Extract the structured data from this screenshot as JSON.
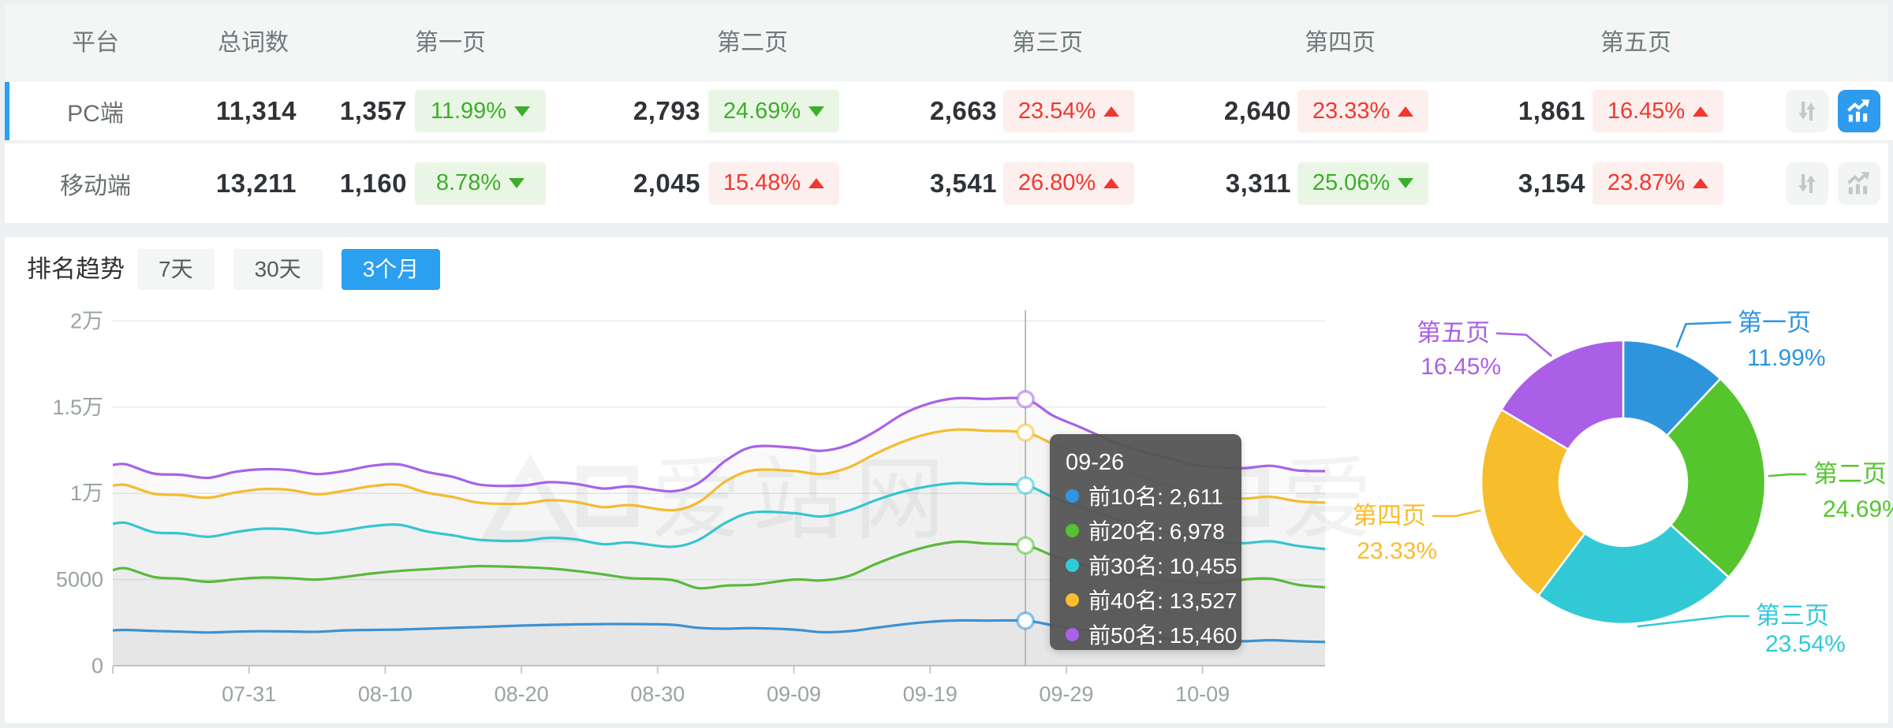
{
  "table": {
    "columns": [
      "平台",
      "总词数",
      "第一页",
      "第二页",
      "第三页",
      "第四页",
      "第五页"
    ],
    "rows": [
      {
        "platform": "PC端",
        "total": "11,314",
        "selected": true,
        "pages": [
          {
            "count": "1,357",
            "pct": "11.99%",
            "dir": "down"
          },
          {
            "count": "2,793",
            "pct": "24.69%",
            "dir": "down"
          },
          {
            "count": "2,663",
            "pct": "23.54%",
            "dir": "up"
          },
          {
            "count": "2,640",
            "pct": "23.33%",
            "dir": "up"
          },
          {
            "count": "1,861",
            "pct": "16.45%",
            "dir": "up"
          }
        ]
      },
      {
        "platform": "移动端",
        "total": "13,211",
        "selected": false,
        "pages": [
          {
            "count": "1,160",
            "pct": "8.78%",
            "dir": "down"
          },
          {
            "count": "2,045",
            "pct": "15.48%",
            "dir": "up"
          },
          {
            "count": "3,541",
            "pct": "26.80%",
            "dir": "up"
          },
          {
            "count": "3,311",
            "pct": "25.06%",
            "dir": "down"
          },
          {
            "count": "3,154",
            "pct": "23.87%",
            "dir": "up"
          }
        ]
      }
    ]
  },
  "trend": {
    "title": "排名趋势",
    "tabs": [
      {
        "label": "7天",
        "active": false
      },
      {
        "label": "30天",
        "active": false
      },
      {
        "label": "3个月",
        "active": true
      }
    ]
  },
  "tooltip": {
    "date": "09-26",
    "items": [
      {
        "label": "前10名",
        "value": "2,611",
        "color": "#3095e2"
      },
      {
        "label": "前20名",
        "value": "6,978",
        "color": "#54c234"
      },
      {
        "label": "前30名",
        "value": "10,455",
        "color": "#30cbd8"
      },
      {
        "label": "前40名",
        "value": "13,527",
        "color": "#f8bf2b"
      },
      {
        "label": "前50名",
        "value": "15,460",
        "color": "#a862e8"
      }
    ]
  },
  "colors": {
    "accent_blue": "#2aa1f1",
    "badge_green_text": "#3dae2b",
    "badge_green_bg": "#e9f6e5",
    "badge_red_text": "#f0382e",
    "badge_red_bg": "#fdefee",
    "active_icon_bg": "#2e9bef",
    "header_bg": "#f4f6f6",
    "grid_line": "#e7e9e9",
    "axis_line": "#c8cbcb",
    "axis_text": "#9aa3a3"
  },
  "watermark_text": "爱站网",
  "chart_data": [
    {
      "type": "line",
      "title": "排名趋势 (3个月)",
      "x_start_date": "07-21",
      "x_tick_labels": [
        "07-31",
        "08-10",
        "08-20",
        "08-30",
        "09-09",
        "09-19",
        "09-29",
        "10-09"
      ],
      "x_tick_offsets": [
        10,
        20,
        30,
        40,
        50,
        60,
        70,
        80
      ],
      "y_tick_labels": [
        "0",
        "5000",
        "1万",
        "1.5万",
        "2万"
      ],
      "y_tick_values": [
        0,
        5000,
        10000,
        15000,
        20000
      ],
      "ylim": [
        0,
        20000
      ],
      "grid": true,
      "legend_position": "none",
      "crosshair": {
        "date": "09-26",
        "x_offset": 67
      },
      "x_offsets": [
        0,
        1,
        3,
        5,
        7,
        9,
        11,
        13,
        15,
        17,
        19,
        21,
        23,
        25,
        27,
        30,
        32,
        34,
        36,
        38,
        41,
        43,
        45,
        47,
        50,
        52,
        54,
        56,
        58,
        60,
        62,
        64,
        67,
        69,
        71,
        73,
        75,
        77,
        79,
        81,
        83,
        85,
        87,
        89
      ],
      "series": [
        {
          "name": "前10名",
          "color": "#3095e2",
          "values": [
            2050,
            2080,
            2020,
            1980,
            1930,
            1980,
            2000,
            1990,
            1970,
            2050,
            2080,
            2100,
            2150,
            2200,
            2250,
            2330,
            2370,
            2400,
            2420,
            2420,
            2380,
            2200,
            2150,
            2180,
            2100,
            1950,
            2000,
            2200,
            2400,
            2550,
            2630,
            2620,
            2611,
            2350,
            2100,
            1900,
            1750,
            1600,
            1500,
            1450,
            1420,
            1480,
            1420,
            1380
          ]
        },
        {
          "name": "前20名",
          "color": "#54c234",
          "values": [
            5550,
            5650,
            5150,
            5050,
            4870,
            5020,
            5120,
            5080,
            5000,
            5150,
            5350,
            5500,
            5600,
            5700,
            5780,
            5720,
            5650,
            5500,
            5300,
            5080,
            4980,
            4500,
            4650,
            4700,
            5000,
            4950,
            5200,
            5900,
            6500,
            6950,
            7200,
            7100,
            6978,
            6400,
            5900,
            5500,
            5200,
            5000,
            4850,
            4800,
            5000,
            5050,
            4700,
            4550
          ]
        },
        {
          "name": "前30名",
          "color": "#30cbd8",
          "values": [
            8230,
            8280,
            7750,
            7680,
            7480,
            7750,
            7950,
            7900,
            7680,
            7850,
            8100,
            8180,
            7800,
            7560,
            7300,
            7250,
            7420,
            7330,
            7050,
            7150,
            6900,
            7300,
            8300,
            8900,
            8850,
            8660,
            9000,
            9600,
            10100,
            10430,
            10600,
            10540,
            10455,
            9780,
            9200,
            8680,
            8200,
            7820,
            7420,
            7210,
            7110,
            7220,
            6950,
            6770
          ]
        },
        {
          "name": "前40名",
          "color": "#f8bf2b",
          "values": [
            10450,
            10480,
            9980,
            9900,
            9750,
            10050,
            10250,
            10200,
            9950,
            10150,
            10420,
            10500,
            10050,
            9780,
            9450,
            9400,
            9600,
            9500,
            9200,
            9320,
            9020,
            9480,
            10700,
            11340,
            11300,
            11120,
            11500,
            12300,
            13000,
            13480,
            13700,
            13640,
            13527,
            12880,
            12280,
            11680,
            11080,
            10580,
            10100,
            9820,
            9700,
            9800,
            9540,
            9460
          ]
        },
        {
          "name": "前50名",
          "color": "#a862e8",
          "values": [
            11650,
            11680,
            11150,
            11080,
            10900,
            11250,
            11400,
            11350,
            11120,
            11300,
            11600,
            11680,
            11250,
            10950,
            10500,
            10450,
            10650,
            10550,
            10280,
            10400,
            10120,
            10600,
            11900,
            12700,
            12650,
            12470,
            12800,
            13600,
            14600,
            15230,
            15520,
            15480,
            15460,
            14520,
            13850,
            13150,
            12550,
            12150,
            11720,
            11520,
            11460,
            11600,
            11330,
            11290
          ]
        }
      ]
    },
    {
      "type": "pie",
      "donut": true,
      "labels": [
        "第一页",
        "第二页",
        "第三页",
        "第四页",
        "第五页"
      ],
      "values": [
        11.99,
        24.69,
        23.54,
        23.33,
        16.45
      ],
      "unit": "%",
      "colors": [
        "#2e95dd",
        "#55c52e",
        "#32c9d6",
        "#f7bd2b",
        "#aa5fe6"
      ],
      "start_angle_deg": 0,
      "clockwise": true,
      "legend_position": "none"
    }
  ]
}
